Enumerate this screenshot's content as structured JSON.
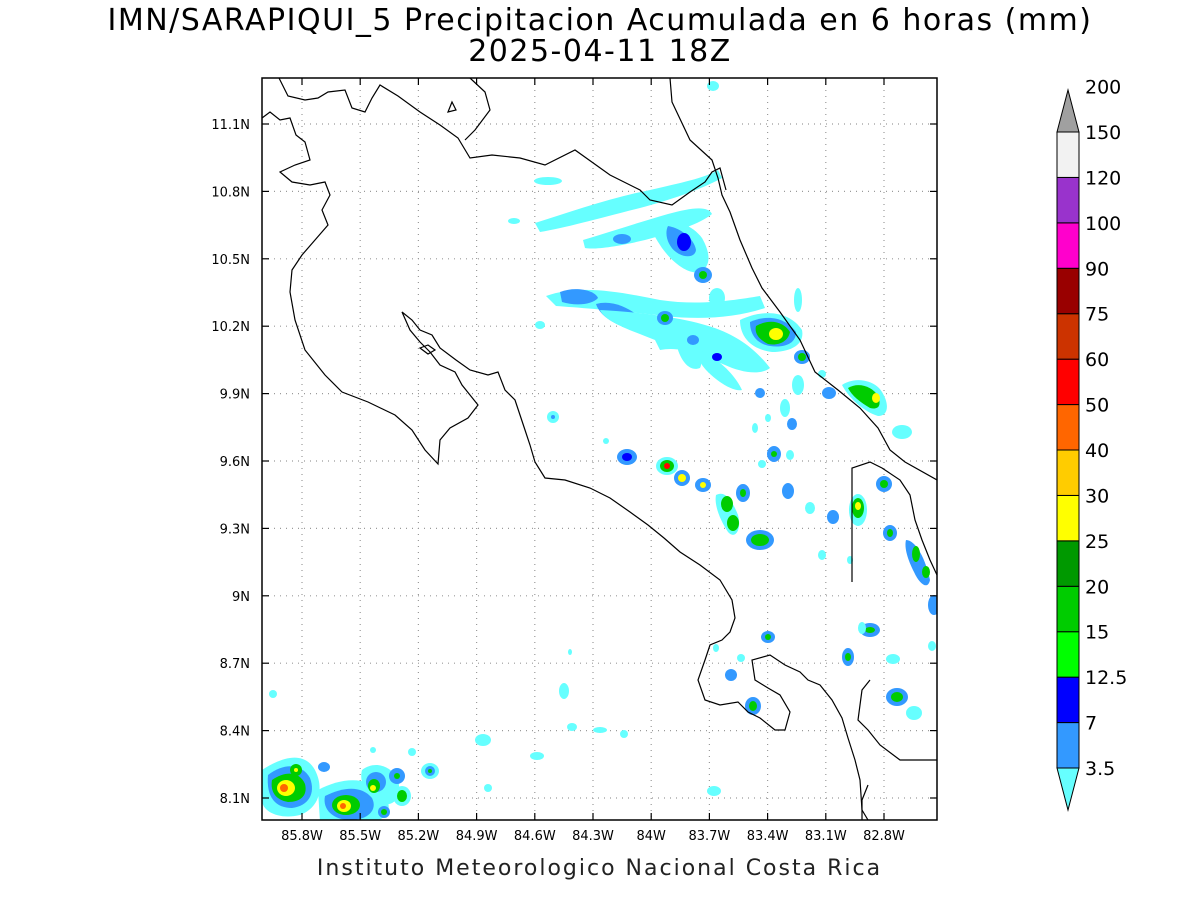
{
  "title": "IMN/SARAPIQUI_5 Precipitacion Acumulada en 6 horas (mm)",
  "subtitle": "2025-04-11 18Z",
  "footer": "Instituto Meteorologico Nacional Costa Rica",
  "lat_ticks": [
    "11.1N",
    "10.8N",
    "10.5N",
    "10.2N",
    "9.9N",
    "9.6N",
    "9.3N",
    "9N",
    "8.7N",
    "8.4N",
    "8.1N"
  ],
  "lon_ticks": [
    "85.8W",
    "85.5W",
    "85.2W",
    "84.9W",
    "84.6W",
    "84.3W",
    "84W",
    "83.7W",
    "83.4W",
    "83.1W",
    "82.8W"
  ],
  "colorbar": {
    "labels": [
      "3.5",
      "7",
      "12.5",
      "15",
      "20",
      "25",
      "30",
      "40",
      "50",
      "60",
      "75",
      "90",
      "100",
      "120",
      "150",
      "200"
    ],
    "colors": [
      "#66ffff",
      "#3399ff",
      "#0000ff",
      "#00ff00",
      "#00cc00",
      "#009900",
      "#ffff00",
      "#ffcc00",
      "#ff6600",
      "#ff0000",
      "#cc3300",
      "#990000",
      "#ff00cc",
      "#9933cc",
      "#f2f2f2",
      "#a0a0a0"
    ]
  }
}
